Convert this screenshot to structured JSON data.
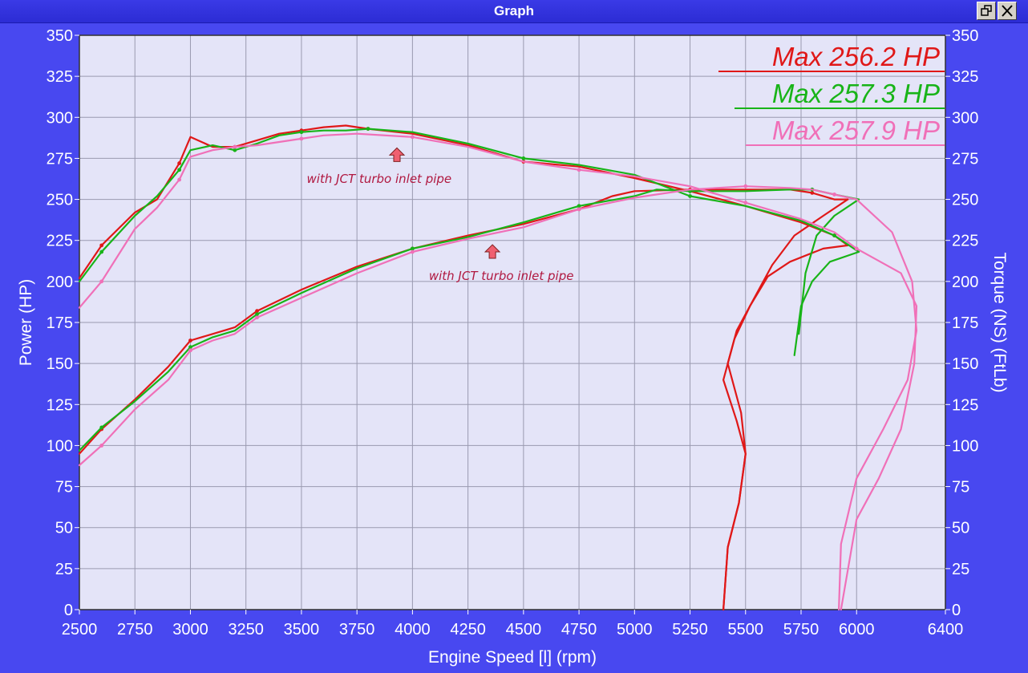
{
  "window": {
    "title": "Graph",
    "restore_icon": "restore-icon",
    "close_icon": "close-icon"
  },
  "chart_data": {
    "type": "line",
    "xlabel": "Engine Speed [l] (rpm)",
    "ylabel_left": "Power (HP)",
    "ylabel_right": "Torque (NS) (FtLb)",
    "xlim": [
      2500,
      6400
    ],
    "ylim": [
      0,
      350
    ],
    "x_ticks": [
      "2500",
      "2750",
      "3000",
      "3250",
      "3500",
      "3750",
      "4000",
      "4250",
      "4500",
      "4750",
      "5000",
      "5250",
      "5500",
      "5750",
      "6000",
      "6400"
    ],
    "x_tick_values": [
      2500,
      2750,
      3000,
      3250,
      3500,
      3750,
      4000,
      4250,
      4500,
      4750,
      5000,
      5250,
      5500,
      5750,
      6000,
      6400
    ],
    "y_ticks": [
      "0",
      "25",
      "50",
      "75",
      "100",
      "125",
      "150",
      "175",
      "200",
      "225",
      "250",
      "275",
      "300",
      "325",
      "350"
    ],
    "y_tick_values": [
      0,
      25,
      50,
      75,
      100,
      125,
      150,
      175,
      200,
      225,
      250,
      275,
      300,
      325,
      350
    ],
    "grid": true,
    "legend_position": "top-right",
    "legend": [
      {
        "label": "Max 256.2 HP",
        "color": "#e01818"
      },
      {
        "label": "Max 257.3 HP",
        "color": "#18b418"
      },
      {
        "label": "Max 257.9 HP",
        "color": "#f070b8"
      }
    ],
    "annotations": [
      {
        "text": "with JCT turbo inlet pipe",
        "x": 3850,
        "y": 260,
        "arrow_x": 3930,
        "arrow_y": 277
      },
      {
        "text": "with JCT turbo inlet pipe",
        "x": 4400,
        "y": 201,
        "arrow_x": 4360,
        "arrow_y": 218
      }
    ],
    "series": [
      {
        "color": "#e01818",
        "group": "curve-a",
        "points": [
          [
            2500,
            202
          ],
          [
            2600,
            222
          ],
          [
            2750,
            242
          ],
          [
            2850,
            250
          ],
          [
            2950,
            272
          ],
          [
            3000,
            288
          ],
          [
            3100,
            282
          ],
          [
            3200,
            282
          ],
          [
            3300,
            286
          ],
          [
            3400,
            290
          ],
          [
            3500,
            292
          ],
          [
            3600,
            294
          ],
          [
            3700,
            295
          ],
          [
            3800,
            293
          ],
          [
            4000,
            290
          ],
          [
            4250,
            283
          ],
          [
            4500,
            273
          ],
          [
            4750,
            270
          ],
          [
            5000,
            263
          ],
          [
            5250,
            255
          ],
          [
            5500,
            246
          ],
          [
            5750,
            236
          ],
          [
            5900,
            228
          ],
          [
            5960,
            222
          ]
        ]
      },
      {
        "color": "#e01818",
        "group": "curve-b",
        "points": [
          [
            2500,
            95
          ],
          [
            2600,
            110
          ],
          [
            2750,
            128
          ],
          [
            2900,
            148
          ],
          [
            3000,
            164
          ],
          [
            3100,
            168
          ],
          [
            3200,
            172
          ],
          [
            3300,
            182
          ],
          [
            3500,
            195
          ],
          [
            3750,
            209
          ],
          [
            4000,
            220
          ],
          [
            4250,
            228
          ],
          [
            4500,
            235
          ],
          [
            4750,
            244
          ],
          [
            4900,
            252
          ],
          [
            5000,
            255
          ],
          [
            5250,
            256
          ],
          [
            5500,
            256
          ],
          [
            5700,
            256
          ],
          [
            5800,
            254
          ],
          [
            5900,
            250
          ],
          [
            5960,
            250
          ]
        ]
      },
      {
        "color": "#e01818",
        "group": "back-a",
        "points": [
          [
            5960,
            222
          ],
          [
            5850,
            220
          ],
          [
            5700,
            212
          ],
          [
            5600,
            203
          ],
          [
            5520,
            185
          ],
          [
            5450,
            165
          ],
          [
            5400,
            140
          ],
          [
            5460,
            115
          ],
          [
            5500,
            95
          ],
          [
            5470,
            65
          ],
          [
            5420,
            38
          ],
          [
            5400,
            0
          ]
        ]
      },
      {
        "color": "#e01818",
        "group": "back-b",
        "points": [
          [
            5960,
            250
          ],
          [
            5850,
            240
          ],
          [
            5720,
            228
          ],
          [
            5620,
            210
          ],
          [
            5540,
            190
          ],
          [
            5460,
            170
          ],
          [
            5420,
            150
          ],
          [
            5480,
            120
          ],
          [
            5500,
            95
          ],
          [
            5470,
            65
          ],
          [
            5420,
            38
          ],
          [
            5400,
            0
          ]
        ]
      },
      {
        "color": "#18b418",
        "group": "curve-a",
        "points": [
          [
            2500,
            200
          ],
          [
            2600,
            218
          ],
          [
            2750,
            240
          ],
          [
            2850,
            252
          ],
          [
            2950,
            268
          ],
          [
            3000,
            280
          ],
          [
            3100,
            283
          ],
          [
            3200,
            280
          ],
          [
            3300,
            284
          ],
          [
            3400,
            289
          ],
          [
            3500,
            291
          ],
          [
            3600,
            292
          ],
          [
            3700,
            292
          ],
          [
            3800,
            293
          ],
          [
            4000,
            291
          ],
          [
            4250,
            284
          ],
          [
            4500,
            275
          ],
          [
            4750,
            271
          ],
          [
            5000,
            265
          ],
          [
            5250,
            252
          ],
          [
            5500,
            246
          ],
          [
            5750,
            237
          ],
          [
            5900,
            228
          ],
          [
            6010,
            218
          ]
        ]
      },
      {
        "color": "#18b418",
        "group": "curve-b",
        "points": [
          [
            2500,
            97
          ],
          [
            2600,
            111
          ],
          [
            2750,
            127
          ],
          [
            2900,
            145
          ],
          [
            3000,
            160
          ],
          [
            3100,
            166
          ],
          [
            3200,
            170
          ],
          [
            3300,
            180
          ],
          [
            3500,
            193
          ],
          [
            3750,
            208
          ],
          [
            4000,
            220
          ],
          [
            4250,
            227
          ],
          [
            4500,
            236
          ],
          [
            4750,
            246
          ],
          [
            5000,
            252
          ],
          [
            5100,
            256
          ],
          [
            5250,
            255
          ],
          [
            5500,
            255
          ],
          [
            5700,
            256
          ],
          [
            5800,
            256
          ],
          [
            5900,
            253
          ],
          [
            6010,
            250
          ]
        ]
      },
      {
        "color": "#18b418",
        "group": "back-a",
        "points": [
          [
            6010,
            218
          ],
          [
            5880,
            212
          ],
          [
            5800,
            200
          ],
          [
            5750,
            185
          ],
          [
            5720,
            155
          ]
        ]
      },
      {
        "color": "#18b418",
        "group": "back-b",
        "points": [
          [
            6010,
            250
          ],
          [
            5900,
            240
          ],
          [
            5820,
            228
          ],
          [
            5770,
            205
          ],
          [
            5740,
            168
          ]
        ]
      },
      {
        "color": "#f070b8",
        "group": "curve-a",
        "points": [
          [
            2500,
            184
          ],
          [
            2600,
            200
          ],
          [
            2750,
            232
          ],
          [
            2850,
            245
          ],
          [
            2950,
            262
          ],
          [
            3000,
            276
          ],
          [
            3100,
            280
          ],
          [
            3200,
            282
          ],
          [
            3300,
            283
          ],
          [
            3400,
            285
          ],
          [
            3500,
            287
          ],
          [
            3600,
            289
          ],
          [
            3750,
            290
          ],
          [
            4000,
            288
          ],
          [
            4250,
            282
          ],
          [
            4500,
            273
          ],
          [
            4750,
            268
          ],
          [
            5000,
            264
          ],
          [
            5250,
            258
          ],
          [
            5500,
            248
          ],
          [
            5750,
            238
          ],
          [
            5900,
            230
          ],
          [
            6000,
            220
          ]
        ]
      },
      {
        "color": "#f070b8",
        "group": "curve-b",
        "points": [
          [
            2500,
            88
          ],
          [
            2600,
            100
          ],
          [
            2750,
            122
          ],
          [
            2900,
            140
          ],
          [
            3000,
            158
          ],
          [
            3100,
            164
          ],
          [
            3200,
            168
          ],
          [
            3300,
            178
          ],
          [
            3500,
            190
          ],
          [
            3750,
            205
          ],
          [
            4000,
            218
          ],
          [
            4250,
            226
          ],
          [
            4500,
            233
          ],
          [
            4750,
            244
          ],
          [
            5000,
            251
          ],
          [
            5250,
            256
          ],
          [
            5500,
            258
          ],
          [
            5700,
            257
          ],
          [
            5800,
            256
          ],
          [
            5900,
            253
          ],
          [
            6000,
            250
          ]
        ]
      },
      {
        "color": "#f070b8",
        "group": "back-a",
        "points": [
          [
            6000,
            220
          ],
          [
            6200,
            205
          ],
          [
            6270,
            185
          ],
          [
            6260,
            150
          ],
          [
            6200,
            110
          ],
          [
            6100,
            80
          ],
          [
            6000,
            55
          ],
          [
            5930,
            0
          ]
        ]
      },
      {
        "color": "#f070b8",
        "group": "back-b",
        "points": [
          [
            6000,
            250
          ],
          [
            6160,
            230
          ],
          [
            6250,
            200
          ],
          [
            6270,
            170
          ],
          [
            6230,
            140
          ],
          [
            6120,
            110
          ],
          [
            6000,
            80
          ],
          [
            5930,
            40
          ],
          [
            5920,
            0
          ]
        ]
      }
    ]
  }
}
